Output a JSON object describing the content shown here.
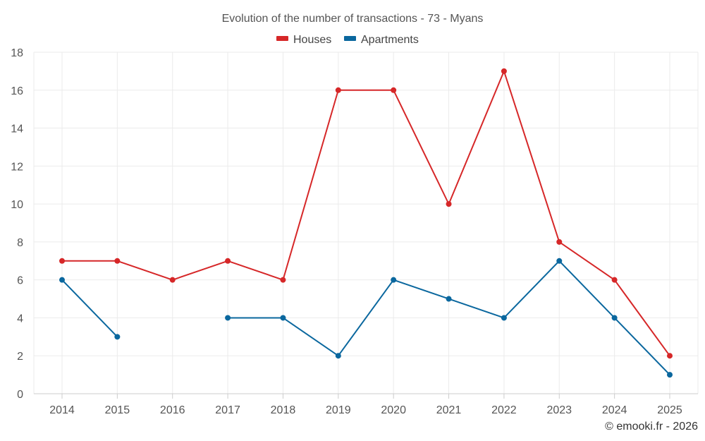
{
  "chart_data": {
    "type": "line",
    "title": "Evolution of the number of transactions - 73 - Myans",
    "categories": [
      "2014",
      "2015",
      "2016",
      "2017",
      "2018",
      "2019",
      "2020",
      "2021",
      "2022",
      "2023",
      "2024",
      "2025"
    ],
    "ylim": [
      0,
      18
    ],
    "yticks": [
      0,
      2,
      4,
      6,
      8,
      10,
      12,
      14,
      16,
      18
    ],
    "grid": true,
    "legend_position": "top-center",
    "series": [
      {
        "name": "Houses",
        "color": "#d62728",
        "values": [
          7,
          7,
          6,
          7,
          6,
          16,
          16,
          10,
          17,
          8,
          6,
          2
        ]
      },
      {
        "name": "Apartments",
        "color": "#0a679e",
        "values": [
          6,
          3,
          null,
          4,
          4,
          2,
          6,
          5,
          4,
          7,
          4,
          1
        ]
      }
    ]
  },
  "credit": "© emooki.fr - 2026"
}
